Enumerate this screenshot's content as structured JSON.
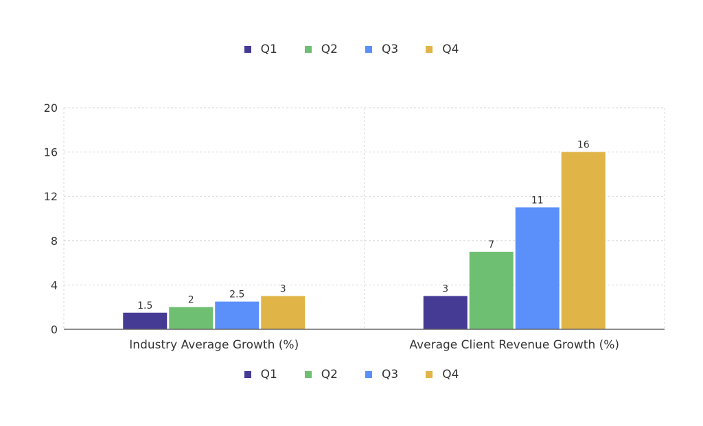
{
  "chart_data": {
    "type": "bar",
    "categories": [
      "Industry Average Growth (%)",
      "Average Client Revenue Growth (%)"
    ],
    "series": [
      {
        "name": "Q1",
        "color": "#453a94",
        "values": [
          1.5,
          3
        ]
      },
      {
        "name": "Q2",
        "color": "#6fbf73",
        "values": [
          2,
          7
        ]
      },
      {
        "name": "Q3",
        "color": "#5b8ff9",
        "values": [
          2.5,
          11
        ]
      },
      {
        "name": "Q4",
        "color": "#e0b447",
        "values": [
          3,
          16
        ]
      }
    ],
    "value_labels": [
      [
        "1.5",
        "3"
      ],
      [
        "2",
        "7"
      ],
      [
        "2.5",
        "11"
      ],
      [
        "3",
        "16"
      ]
    ],
    "ylim": [
      0,
      20
    ],
    "yticks": [
      0,
      4,
      8,
      12,
      16,
      20
    ],
    "grid": true,
    "legend": [
      "top",
      "bottom"
    ]
  }
}
